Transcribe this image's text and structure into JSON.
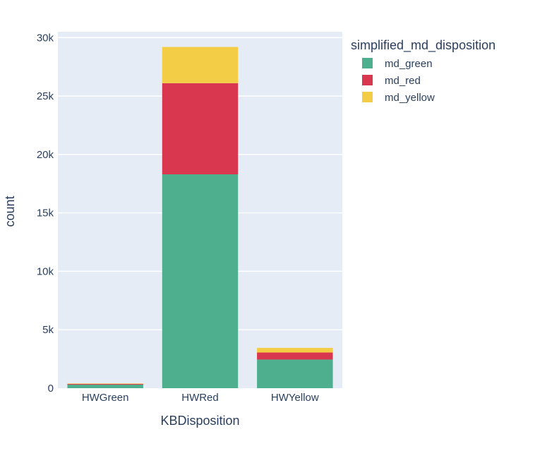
{
  "chart_data": {
    "type": "bar",
    "barmode": "stack",
    "categories": [
      "HWGreen",
      "HWRed",
      "HWYellow"
    ],
    "series": [
      {
        "name": "md_green",
        "color": "#4daf8e",
        "values": [
          300,
          18300,
          2450
        ]
      },
      {
        "name": "md_red",
        "color": "#d9364f",
        "values": [
          60,
          7800,
          600
        ]
      },
      {
        "name": "md_yellow",
        "color": "#f3cd45",
        "values": [
          40,
          3100,
          400
        ]
      }
    ],
    "xlabel": "KBDisposition",
    "ylabel": "count",
    "ylim": [
      0,
      30500
    ],
    "yticks": [
      0,
      5000,
      10000,
      15000,
      20000,
      25000,
      30000
    ],
    "ytick_labels": [
      "0",
      "5k",
      "10k",
      "15k",
      "20k",
      "25k",
      "30k"
    ],
    "legend": {
      "title": "simplified_md_disposition",
      "position": "top-right"
    },
    "grid": true,
    "plot_background": "#e5ecf6"
  }
}
